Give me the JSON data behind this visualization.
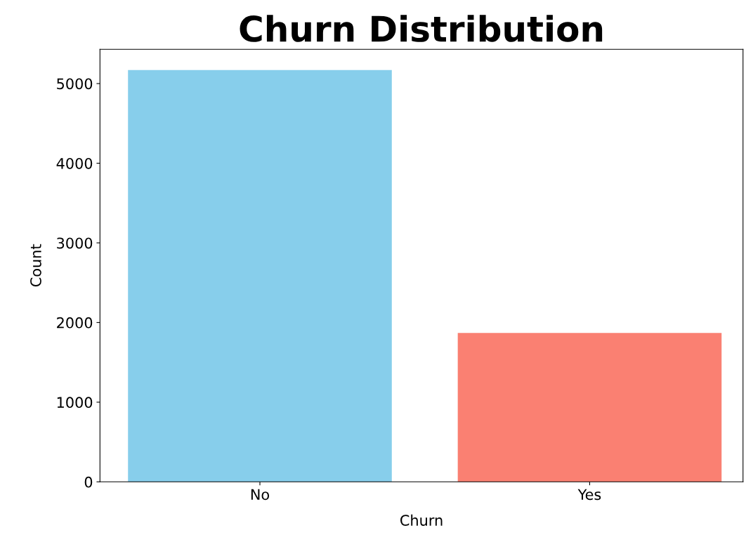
{
  "chart_data": {
    "type": "bar",
    "title": "Churn Distribution",
    "xlabel": "Churn",
    "ylabel": "Count",
    "categories": [
      "No",
      "Yes"
    ],
    "values": [
      5170,
      1870
    ],
    "colors": [
      "#87ceeb",
      "#fa8072"
    ],
    "ylim": [
      0,
      5430
    ],
    "yticks": [
      0,
      1000,
      2000,
      3000,
      4000,
      5000
    ],
    "grid": false,
    "legend": false
  }
}
